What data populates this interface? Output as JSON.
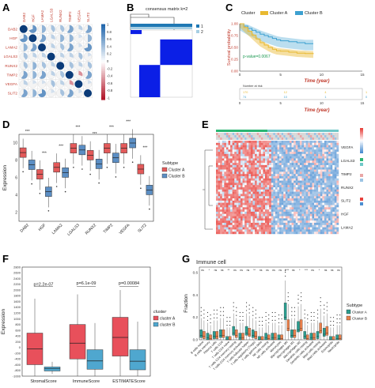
{
  "panels": {
    "A": {
      "label": "A",
      "genes": [
        "DAB2",
        "HGF",
        "LAMA2",
        "LGALS3",
        "RUNX2",
        "TIMP2",
        "VEGFA",
        "SLIT2"
      ],
      "colorbar_ticks": [
        "1",
        "0.8",
        "0.6",
        "0.4",
        "0.2",
        "0",
        "-0.2",
        "-0.4",
        "-0.6",
        "-0.8",
        "-1"
      ],
      "colors": {
        "positive": "#2166ac",
        "negative": "#b2182b",
        "label": "#c0392b"
      },
      "chart_data": {
        "type": "heatmap",
        "genes": [
          "DAB2",
          "HGF",
          "LAMA2",
          "LGALS3",
          "RUNX2",
          "TIMP2",
          "VEGFA",
          "SLIT2"
        ],
        "correlation": [
          [
            1.0,
            0.7,
            0.5,
            0.4,
            0.4,
            0.6,
            0.3,
            0.6
          ],
          [
            0.7,
            1.0,
            0.6,
            0.3,
            0.5,
            0.5,
            0.2,
            0.5
          ],
          [
            0.5,
            0.6,
            1.0,
            0.3,
            0.4,
            0.6,
            0.2,
            0.7
          ],
          [
            0.4,
            0.3,
            0.3,
            1.0,
            0.3,
            0.3,
            0.4,
            0.2
          ],
          [
            0.4,
            0.5,
            0.4,
            0.3,
            1.0,
            0.4,
            0.3,
            0.4
          ],
          [
            0.6,
            0.5,
            0.6,
            0.3,
            0.4,
            1.0,
            -0.3,
            0.6
          ],
          [
            0.3,
            0.2,
            0.2,
            0.4,
            0.3,
            -0.3,
            1.0,
            0.2
          ],
          [
            0.6,
            0.5,
            0.7,
            0.2,
            0.4,
            0.6,
            0.2,
            1.0
          ]
        ]
      }
    },
    "B": {
      "label": "B",
      "title": "consensus matrix k=2",
      "legend": [
        "1",
        "2"
      ],
      "colors": {
        "cluster1": "#1f78b4",
        "cluster2": "#a6cee3",
        "block": "#0b1fe6"
      }
    },
    "C": {
      "label": "C",
      "legend_title": "Cluster",
      "legend_items": [
        "Cluster A",
        "Cluster B"
      ],
      "ylabel": "Survival probability",
      "xlabel": "Time (year)",
      "pvalue": "p-value=0.0067",
      "yticks": [
        "1.00",
        "0.75",
        "0.50",
        "0.25",
        "0.00"
      ],
      "xticks": [
        "0",
        "5",
        "10",
        "15"
      ],
      "risk_title": "Number at risk",
      "risk_rows": [
        [
          "170",
          "12",
          "4",
          "1"
        ],
        [
          "74",
          "10",
          "1",
          "0"
        ]
      ],
      "colors": {
        "A": "#e8b931",
        "B": "#3da0d0",
        "p": "#1a9850",
        "axis": "#c0392b"
      },
      "chart_data": {
        "type": "line",
        "xlabel": "Time (year)",
        "ylabel": "Survival probability",
        "ylim": [
          0,
          1
        ],
        "xlim": [
          0,
          15
        ],
        "series": [
          {
            "name": "Cluster A",
            "x": [
              0,
              0.5,
              1,
              1.5,
              2,
              2.5,
              3,
              3.5,
              4,
              4.5,
              5,
              6,
              7,
              8,
              9
            ],
            "y": [
              1.0,
              0.92,
              0.84,
              0.76,
              0.68,
              0.6,
              0.55,
              0.5,
              0.46,
              0.43,
              0.42,
              0.4,
              0.38,
              0.37,
              0.36
            ]
          },
          {
            "name": "Cluster B",
            "x": [
              0,
              0.5,
              1,
              1.5,
              2,
              2.5,
              3,
              3.5,
              4,
              4.5,
              5,
              6,
              7,
              8,
              9
            ],
            "y": [
              1.0,
              0.95,
              0.9,
              0.86,
              0.82,
              0.78,
              0.75,
              0.72,
              0.69,
              0.66,
              0.64,
              0.62,
              0.6,
              0.58,
              0.58
            ]
          }
        ]
      }
    },
    "D": {
      "label": "D",
      "ylabel": "Expression",
      "yticks": [
        "10",
        "8",
        "6",
        "4",
        "2"
      ],
      "legend_title": "Subtype",
      "legend_items": [
        "Cluster A",
        "Cluster B"
      ],
      "sig": "***",
      "colors": {
        "A": "#e35a5a",
        "B": "#5b8ec4"
      },
      "chart_data": {
        "type": "bar",
        "categories": [
          "DAB2",
          "HGF",
          "LAMA2",
          "LGALS3",
          "RUNX2",
          "TIMP2",
          "VEGFA",
          "SLIT2"
        ],
        "ylim": [
          1,
          11
        ],
        "series": [
          {
            "name": "Cluster A",
            "medians": [
              8.9,
              6.4,
              7.2,
              9.4,
              8.6,
              9.4,
              9.4,
              7.0
            ]
          },
          {
            "name": "Cluster B",
            "medians": [
              7.5,
              4.4,
              6.6,
              9.2,
              7.6,
              8.3,
              10.0,
              4.6
            ]
          }
        ]
      }
    },
    "E": {
      "label": "E",
      "rows": [
        "VEGFA",
        "LGALS3",
        "TIMP2",
        "RUNX2",
        "SLIT2",
        "HGF",
        "LAMA2"
      ],
      "colors": {
        "red": "#e8413c",
        "blue": "#4b8ed1",
        "white": "#ffffff",
        "green": "#2bb673",
        "teal": "#6fc8c8"
      }
    },
    "F": {
      "label": "F",
      "ylabel": "Expression",
      "yticks": [
        "2800",
        "2600",
        "2400",
        "2200",
        "2000",
        "1800",
        "1600",
        "1400",
        "1200",
        "1000",
        "800",
        "600",
        "400",
        "200",
        "0",
        "-200",
        "-400",
        "-600",
        "-800",
        "-1000"
      ],
      "pvalues": [
        "p=2.2e-07",
        "p=6.1e-09",
        "p=0.00084"
      ],
      "legend_title": "cluster",
      "legend_items": [
        "cluster A",
        "cluster B"
      ],
      "colors": {
        "A": "#e8505b",
        "B": "#4fa7cf"
      },
      "chart_data": {
        "type": "bar",
        "categories": [
          "StromalScore",
          "ImmuneScore",
          "ESTIMATEScore"
        ],
        "ylim": [
          -1000,
          2800
        ],
        "series": [
          {
            "name": "cluster A",
            "medians": [
              -50,
              150,
              350
            ]
          },
          {
            "name": "cluster B",
            "medians": [
              -740,
              -470,
              -480
            ]
          }
        ]
      }
    },
    "G": {
      "label": "G",
      "title": "Immune cell",
      "ylabel": "Fraction",
      "yticks": [
        "0.6",
        "0.4",
        "0.2",
        "0.0"
      ],
      "legend_title": "Subtype",
      "legend_items": [
        "Cluster A",
        "Cluster B"
      ],
      "colors": {
        "A": "#2a9d8f",
        "B": "#e9804b"
      },
      "cells": [
        "B cells naive",
        "B cells memory",
        "Plasma cells",
        "T cells CD8",
        "T cells CD4 naive",
        "T cells CD4 memory resting",
        "T cells CD4 memory activated",
        "T cells follicular helper",
        "T cells regulatory (Tregs)",
        "T cells gamma delta",
        "NK cells resting",
        "NK cells activated",
        "Monocytes",
        "Macrophages M0",
        "Macrophages M1",
        "Macrophages M2",
        "Dendritic cells resting",
        "Dendritic cells activated",
        "Mast cells resting",
        "Mast cells activated",
        "Eosinophils",
        "Neutrophils"
      ],
      "sig": [
        "ns",
        "*",
        "ns",
        "ns",
        "**",
        "ns",
        "ns",
        "ns",
        "**",
        "ns",
        "ns",
        "ns",
        "ns",
        "****",
        "ns",
        "*",
        "***",
        "ns",
        "*",
        "ns",
        "ns",
        "ns"
      ],
      "chart_data": {
        "type": "bar",
        "ylim": [
          0,
          0.65
        ],
        "categories": [
          "B cells naive",
          "B cells memory",
          "Plasma cells",
          "T cells CD8",
          "T cells CD4 naive",
          "T cells CD4 memory resting",
          "T cells CD4 memory activated",
          "T cells follicular helper",
          "T cells regulatory (Tregs)",
          "T cells gamma delta",
          "NK cells resting",
          "NK cells activated",
          "Monocytes",
          "Macrophages M0",
          "Macrophages M1",
          "Macrophages M2",
          "Dendritic cells resting",
          "Dendritic cells activated",
          "Mast cells resting",
          "Mast cells activated",
          "Eosinophils",
          "Neutrophils"
        ],
        "series": [
          {
            "name": "Cluster A",
            "medians": [
              0.04,
              0.02,
              0.03,
              0.04,
              0.0,
              0.06,
              0.02,
              0.06,
              0.04,
              0.0,
              0.02,
              0.02,
              0.01,
              0.2,
              0.04,
              0.09,
              0.03,
              0.02,
              0.03,
              0.05,
              0.0,
              0.01
            ]
          },
          {
            "name": "Cluster B",
            "medians": [
              0.03,
              0.01,
              0.03,
              0.04,
              0.0,
              0.04,
              0.02,
              0.05,
              0.03,
              0.0,
              0.01,
              0.02,
              0.01,
              0.1,
              0.04,
              0.1,
              0.01,
              0.02,
              0.08,
              0.06,
              0.0,
              0.01
            ]
          }
        ]
      }
    }
  }
}
